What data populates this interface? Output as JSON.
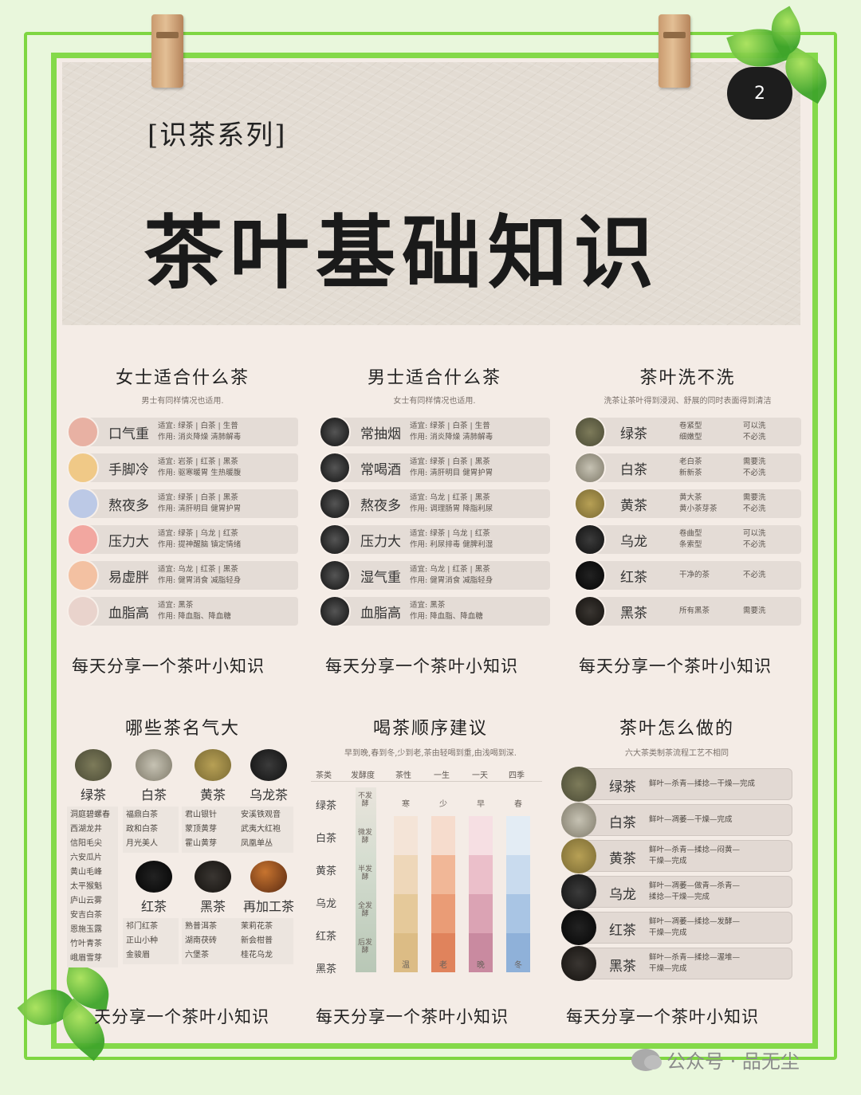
{
  "header": {
    "series": "[识茶系列]",
    "title": "茶叶基础知识",
    "badge": "2"
  },
  "women": {
    "title": "女士适合什么茶",
    "subtitle": "男士有同样情况也适用.",
    "rows": [
      {
        "label": "口气重",
        "suit": "适宜: 绿茶 | 白茶 | 生普",
        "effect": "作用: 消炎降燥 清肺解毒"
      },
      {
        "label": "手脚冷",
        "suit": "适宜: 岩茶 | 红茶 | 黑茶",
        "effect": "作用: 驱寒暖胃 生热暖腹"
      },
      {
        "label": "熬夜多",
        "suit": "适宜: 绿茶 | 白茶 | 黑茶",
        "effect": "作用: 清肝明目 健胃护胃"
      },
      {
        "label": "压力大",
        "suit": "适宜: 绿茶 | 乌龙 | 红茶",
        "effect": "作用: 提神醒脑 镇定情绪"
      },
      {
        "label": "易虚胖",
        "suit": "适宜: 乌龙 | 红茶 | 黑茶",
        "effect": "作用: 健胃消食 减脂轻身"
      },
      {
        "label": "血脂高",
        "suit": "适宜: 黑茶",
        "effect": "作用: 降血脂、降血糖"
      }
    ],
    "avatar_colors": [
      "#e8b1a3",
      "#f0c987",
      "#bcc9e6",
      "#f2a7a0",
      "#f3c1a2",
      "#e9d3cc"
    ]
  },
  "men": {
    "title": "男士适合什么茶",
    "subtitle": "女士有同样情况也适用.",
    "rows": [
      {
        "label": "常抽烟",
        "suit": "适宜: 绿茶 | 白茶 | 生普",
        "effect": "作用: 消炎降燥 清肺解毒"
      },
      {
        "label": "常喝酒",
        "suit": "适宜: 绿茶 | 白茶 | 黑茶",
        "effect": "作用: 清肝明目 健胃护胃"
      },
      {
        "label": "熬夜多",
        "suit": "适宜: 乌龙 | 红茶 | 黑茶",
        "effect": "作用: 调理肠胃 降脂利尿"
      },
      {
        "label": "压力大",
        "suit": "适宜: 绿茶 | 乌龙 | 红茶",
        "effect": "作用: 利尿排毒 健脾利湿"
      },
      {
        "label": "湿气重",
        "suit": "适宜: 乌龙 | 红茶 | 黑茶",
        "effect": "作用: 健胃消食 减脂轻身"
      },
      {
        "label": "血脂高",
        "suit": "适宜: 黑茶",
        "effect": "作用: 降血脂、降血糖"
      }
    ]
  },
  "wash": {
    "title": "茶叶洗不洗",
    "subtitle": "洗茶让茶叶得到浸润、舒展的同时表面得到清洁",
    "rows": [
      {
        "tea": "绿茶",
        "type": "卷紧型\n细嫩型",
        "wash": "可以洗\n不必洗"
      },
      {
        "tea": "白茶",
        "type": "老白茶\n新新茶",
        "wash": "需要洗\n不必洗"
      },
      {
        "tea": "黄茶",
        "type": "黄大茶\n黄小茶芽茶",
        "wash": "需要洗\n不必洗"
      },
      {
        "tea": "乌龙",
        "type": "卷曲型\n条索型",
        "wash": "可以洗\n不必洗"
      },
      {
        "tea": "红茶",
        "type": "干净的茶",
        "wash": "不必洗"
      },
      {
        "tea": "黑茶",
        "type": "所有黑茶",
        "wash": "需要洗"
      }
    ]
  },
  "famous": {
    "title": "哪些茶名气大",
    "groups": [
      {
        "name": "绿茶",
        "items": "洞庭碧螺春\n西湖龙井\n信阳毛尖\n六安瓜片\n黄山毛峰\n太平猴魁\n庐山云雾\n安吉白茶\n恩施玉露\n竹叶青茶\n峨眉雪芽"
      },
      {
        "name": "白茶",
        "items": "福鼎白茶\n政和白茶\n月光美人"
      },
      {
        "name": "黄茶",
        "items": "君山银针\n蒙顶黄芽\n霍山黄芽"
      },
      {
        "name": "乌龙茶",
        "items": "安溪铁观音\n武夷大红袍\n凤凰单丛"
      },
      {
        "name": "红茶",
        "items": "祁门红茶\n正山小种\n金骏眉"
      },
      {
        "name": "黑茶",
        "items": "熟普洱茶\n湖南茯砖\n六堡茶"
      },
      {
        "name": "再加工茶",
        "items": "茉莉花茶\n新会柑普\n桂花乌龙"
      }
    ]
  },
  "order": {
    "title": "喝茶顺序建议",
    "subtitle": "早到晚,春到冬,少到老,茶由轻喝到重,由浅喝到深.",
    "headers": [
      "茶类",
      "发酵度",
      "茶性",
      "一生",
      "一天",
      "四季"
    ],
    "teas": [
      "绿茶",
      "白茶",
      "黄茶",
      "乌龙",
      "红茶",
      "黑茶"
    ],
    "ferment": [
      "不发酵",
      "微发酵",
      "半发酵",
      "全发酵",
      "后发酵"
    ],
    "strips": [
      {
        "top": "寒",
        "bottom": "温",
        "colors": [
          "#f4e4d7",
          "#eed7b9",
          "#e5c99a",
          "#dcbc85"
        ]
      },
      {
        "top": "少",
        "bottom": "老",
        "colors": [
          "#f6dccd",
          "#f1b797",
          "#ea9c76",
          "#e0835c"
        ]
      },
      {
        "top": "早",
        "bottom": "晚",
        "colors": [
          "#f6dfe3",
          "#ebbfca",
          "#dba3b4",
          "#c98aa0"
        ]
      },
      {
        "top": "春",
        "bottom": "冬",
        "colors": [
          "#e3ecf4",
          "#c9dbee",
          "#a9c5e4",
          "#8fb1d9"
        ]
      }
    ]
  },
  "process": {
    "title": "茶叶怎么做的",
    "subtitle": "六大茶类制茶流程工艺不相同",
    "rows": [
      {
        "tea": "绿茶",
        "steps": "鲜叶—杀青—揉捻—干燥—完成"
      },
      {
        "tea": "白茶",
        "steps": "鲜叶—凋萎—干燥—完成"
      },
      {
        "tea": "黄茶",
        "steps": "鲜叶—杀青—揉捻—闷黄—\n干燥—完成"
      },
      {
        "tea": "乌龙",
        "steps": "鲜叶—凋萎—做青—杀青—\n揉捻—干燥—完成"
      },
      {
        "tea": "红茶",
        "steps": "鲜叶—凋萎—揉捻—发酵—\n干燥—完成"
      },
      {
        "tea": "黑茶",
        "steps": "鲜叶—杀青—揉捻—渥堆—\n干燥—完成"
      }
    ]
  },
  "footer": {
    "tagline": "每天分享一个茶叶小知识",
    "tagline_partial": "天分享一个茶叶小知识"
  },
  "watermark": {
    "label": "公众号 · 品无尘"
  }
}
